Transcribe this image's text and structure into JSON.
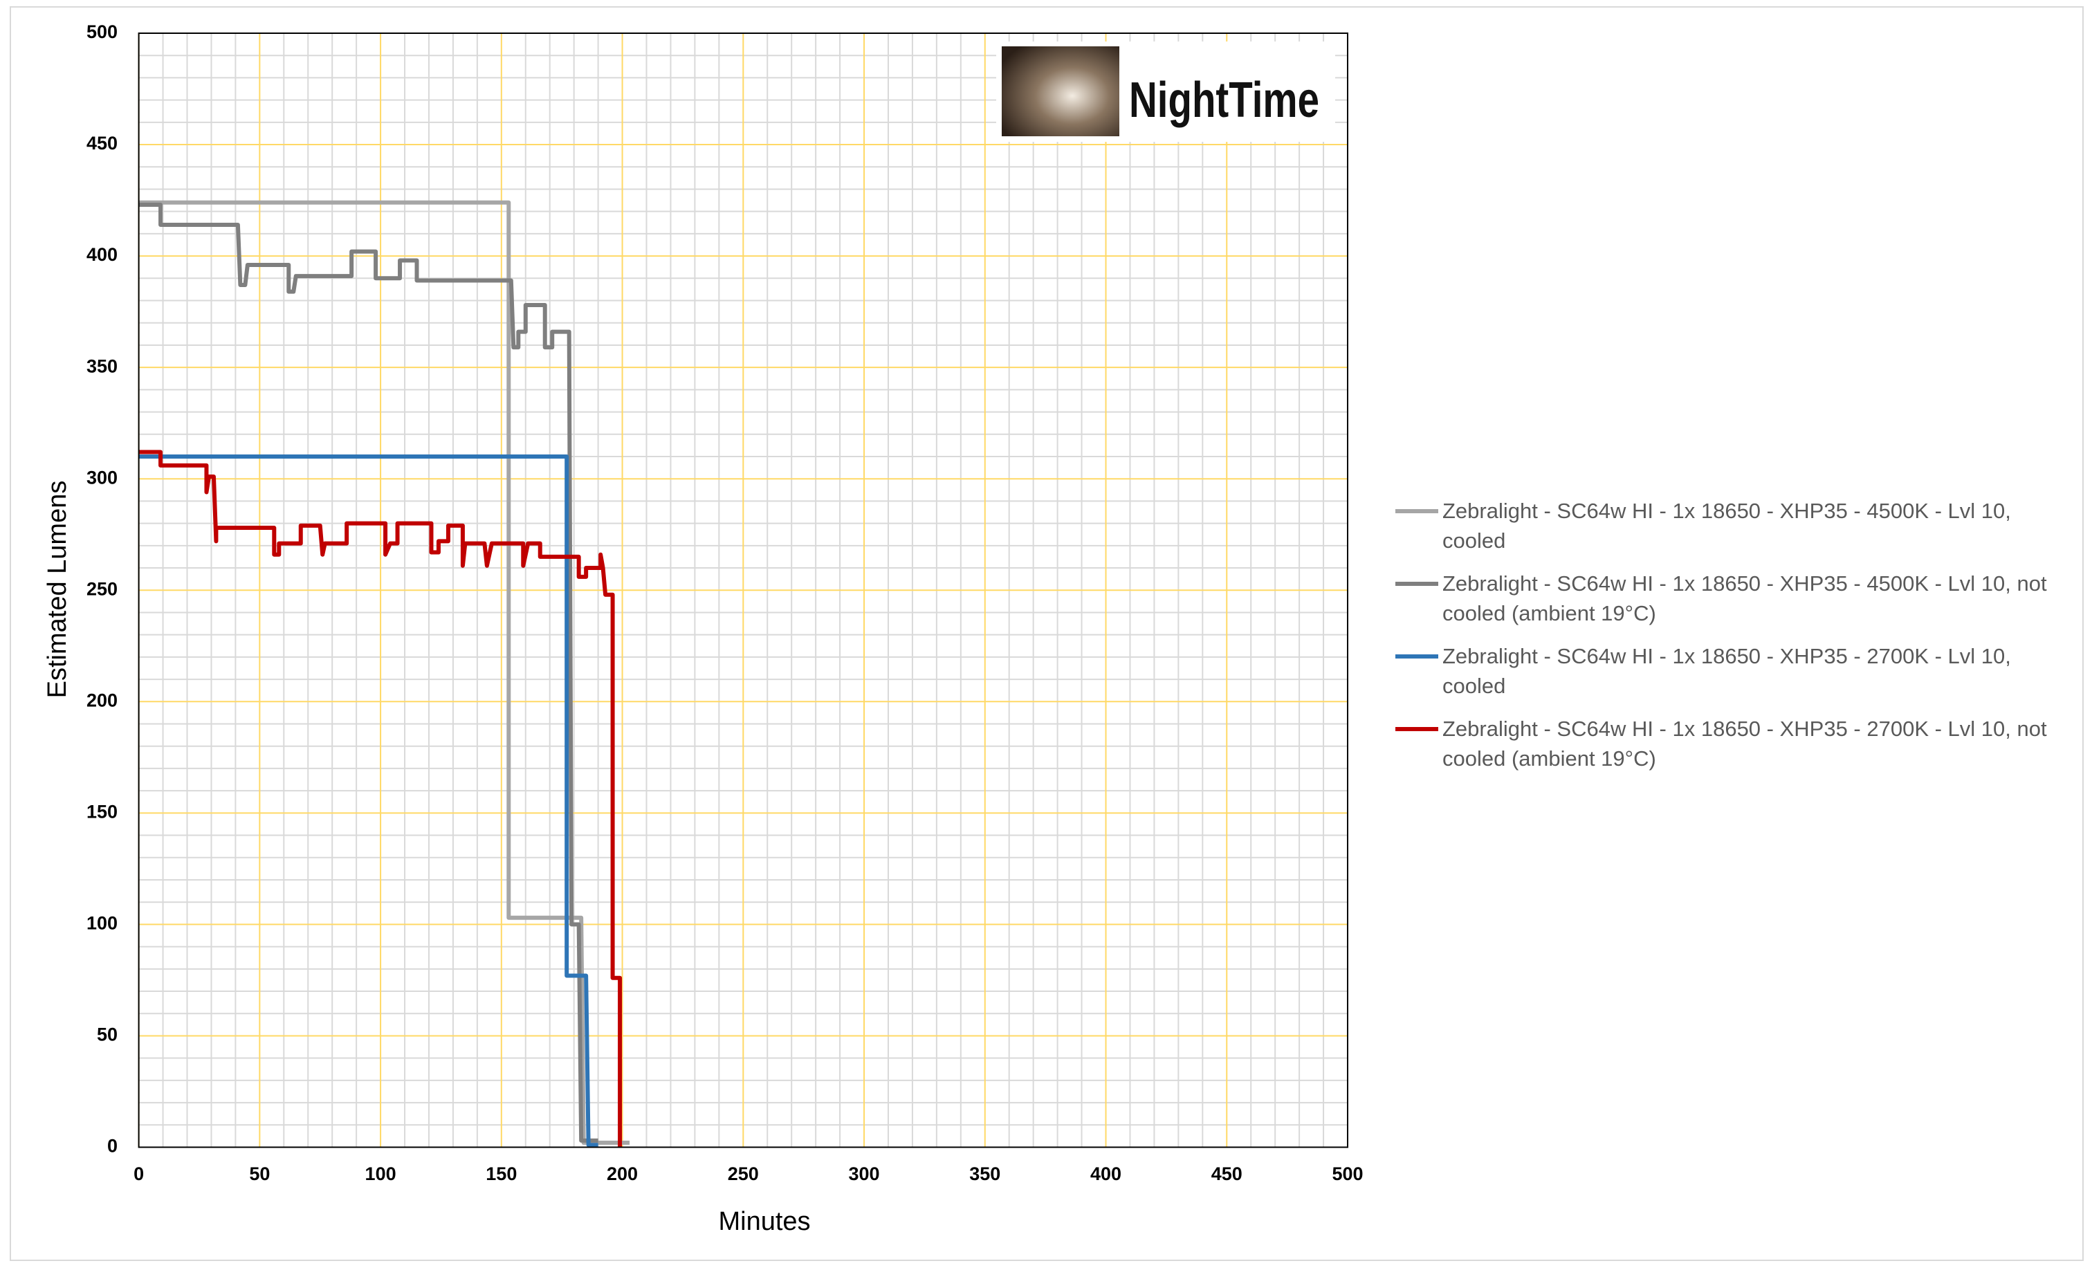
{
  "chart_data": {
    "type": "line",
    "logo_text": "NightTime",
    "x_label": "Minutes",
    "y_label": "Estimated Lumens",
    "xlim": [
      0,
      500
    ],
    "xticks": [
      0,
      50,
      100,
      150,
      200,
      250,
      300,
      350,
      400,
      450,
      500
    ],
    "ylim": [
      0,
      500
    ],
    "yticks": [
      0,
      50,
      100,
      150,
      200,
      250,
      300,
      350,
      400,
      450,
      500
    ],
    "grid": true,
    "legend": "right",
    "series": [
      {
        "name": "Zebralight - SC64w HI - 1x 18650 - XHP35 - 4500K - Lvl 10, cooled",
        "color": "#a6a6a6",
        "x": [
          0,
          153,
          153,
          183,
          184,
          203
        ],
        "values": [
          424,
          424,
          103,
          103,
          2,
          2
        ]
      },
      {
        "name": "Zebralight - SC64w HI - 1x 18650 - XHP35 - 4500K - Lvl 10, not cooled (ambient 19°C)",
        "color": "#7f7f7f",
        "x": [
          0,
          9,
          9,
          41,
          42,
          44,
          45,
          62,
          62,
          64,
          65,
          88,
          88,
          98,
          98,
          108,
          108,
          115,
          115,
          154,
          155,
          157,
          157,
          160,
          160,
          168,
          168,
          171,
          171,
          178,
          179,
          182,
          183,
          190
        ],
        "values": [
          423,
          423,
          414,
          414,
          387,
          387,
          396,
          396,
          384,
          384,
          391,
          391,
          402,
          402,
          390,
          390,
          398,
          398,
          389,
          389,
          359,
          359,
          366,
          366,
          378,
          378,
          359,
          359,
          366,
          366,
          100,
          100,
          3,
          3
        ]
      },
      {
        "name": "Zebralight - SC64w HI - 1x 18650 - XHP35 - 2700K - Lvl 10, cooled",
        "color": "#2e75b6",
        "x": [
          0,
          177,
          177,
          185,
          186,
          190
        ],
        "values": [
          310,
          310,
          77,
          77,
          1,
          1
        ]
      },
      {
        "name": "Zebralight - SC64w HI - 1x 18650 - XHP35 - 2700K - Lvl 10, not cooled (ambient 19°C)",
        "color": "#c00000",
        "x": [
          0,
          9,
          9,
          28,
          28,
          29,
          31,
          32,
          32,
          56,
          56,
          58,
          58,
          67,
          67,
          75,
          76,
          77,
          86,
          86,
          102,
          102,
          104,
          107,
          107,
          121,
          121,
          124,
          124,
          128,
          128,
          134,
          134,
          135,
          143,
          144,
          146,
          159,
          159,
          161,
          166,
          166,
          182,
          182,
          185,
          185,
          191,
          191,
          192,
          193,
          196,
          196,
          199,
          199
        ],
        "values": [
          312,
          312,
          306,
          306,
          294,
          301,
          301,
          272,
          278,
          278,
          266,
          266,
          271,
          271,
          279,
          279,
          266,
          271,
          271,
          280,
          280,
          266,
          271,
          271,
          280,
          280,
          267,
          267,
          272,
          272,
          279,
          279,
          261,
          271,
          271,
          261,
          271,
          271,
          261,
          271,
          271,
          265,
          265,
          256,
          256,
          260,
          260,
          266,
          260,
          248,
          248,
          76,
          76,
          0
        ]
      }
    ]
  }
}
